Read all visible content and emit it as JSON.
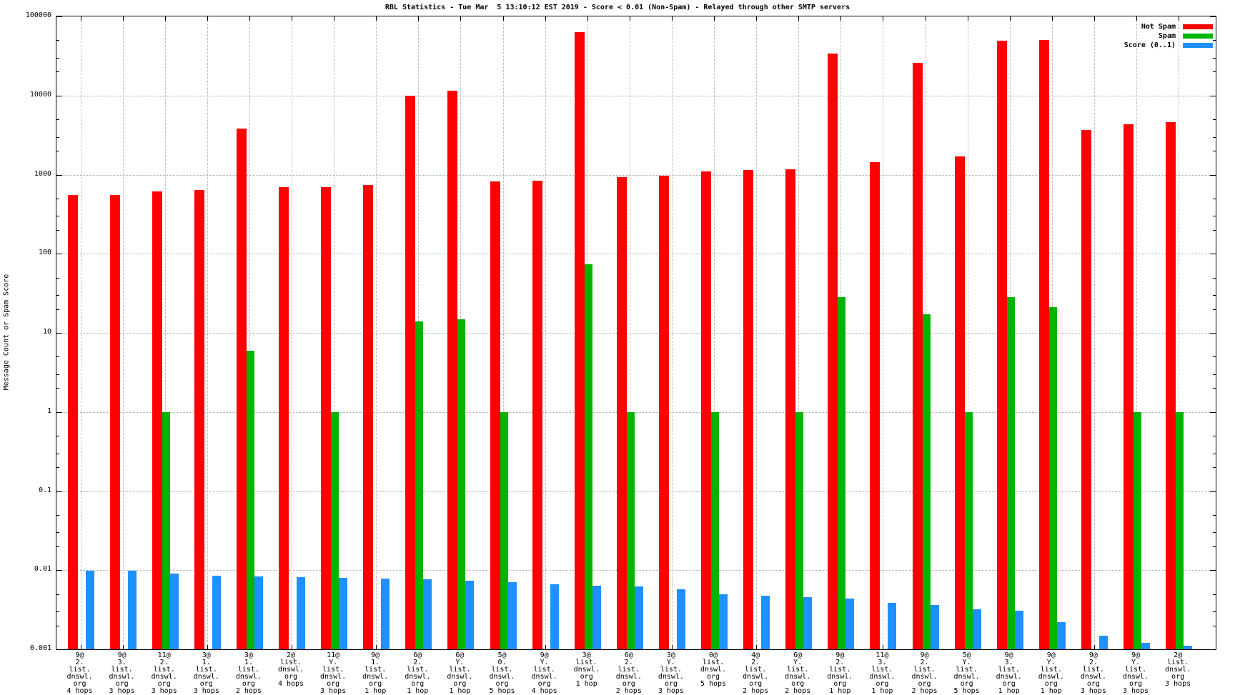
{
  "title": "RBL Statistics - Tue Mar  5 13:10:12 EST 2019 - Score < 0.01 (Non-Spam) - Relayed through other SMTP servers",
  "axes": {
    "ylabel": "Message Count or Spam Score",
    "y_ticks": [
      "100000",
      "10000",
      "1000",
      "100",
      "10",
      "1",
      "0.1",
      "0.01",
      "0.001"
    ],
    "scale": "log"
  },
  "legend": [
    {
      "label": "Not Spam",
      "color": "#ff0000"
    },
    {
      "label": "Spam",
      "color": "#00b400"
    },
    {
      "label": "Score (0..1)",
      "color": "#1e90ff"
    }
  ],
  "chart_data": {
    "type": "bar",
    "scale": "log",
    "title": "RBL Statistics - Tue Mar  5 13:10:12 EST 2019 - Score < 0.01 (Non-Spam) - Relayed through other SMTP servers",
    "xlabel": "",
    "ylabel": "Message Count or Spam Score",
    "ylim": [
      0.001,
      100000
    ],
    "grid": true,
    "legend_position": "top-right",
    "categories": [
      [
        "9@",
        "2.",
        "list.",
        "dnswl.",
        "org",
        "4 hops"
      ],
      [
        "9@",
        "3.",
        "list.",
        "dnswl.",
        "org",
        "3 hops"
      ],
      [
        "11@",
        "2.",
        "list.",
        "dnswl.",
        "org",
        "3 hops"
      ],
      [
        "3@",
        "1.",
        "list.",
        "dnswl.",
        "org",
        "3 hops"
      ],
      [
        "3@",
        "1.",
        "list.",
        "dnswl.",
        "org",
        "2 hops"
      ],
      [
        "2@",
        "list.",
        "dnswl.",
        "org",
        "4 hops"
      ],
      [
        "11@",
        "Y.",
        "list.",
        "dnswl.",
        "org",
        "3 hops"
      ],
      [
        "9@",
        "1.",
        "list.",
        "dnswl.",
        "org",
        "1 hop"
      ],
      [
        "6@",
        "2.",
        "list.",
        "dnswl.",
        "org",
        "1 hop"
      ],
      [
        "6@",
        "Y.",
        "list.",
        "dnswl.",
        "org",
        "1 hop"
      ],
      [
        "5@",
        "0.",
        "list.",
        "dnswl.",
        "org",
        "5 hops"
      ],
      [
        "9@",
        "Y.",
        "list.",
        "dnswl.",
        "org",
        "4 hops"
      ],
      [
        "3@",
        "list.",
        "dnswl.",
        "org",
        "1 hop"
      ],
      [
        "6@",
        "2.",
        "list.",
        "dnswl.",
        "org",
        "2 hops"
      ],
      [
        "3@",
        "Y.",
        "list.",
        "dnswl.",
        "org",
        "3 hops"
      ],
      [
        "0@",
        "list.",
        "dnswl.",
        "org",
        "5 hops"
      ],
      [
        "4@",
        "2.",
        "list.",
        "dnswl.",
        "org",
        "2 hops"
      ],
      [
        "6@",
        "Y.",
        "list.",
        "dnswl.",
        "org",
        "2 hops"
      ],
      [
        "9@",
        "2.",
        "list.",
        "dnswl.",
        "org",
        "1 hop"
      ],
      [
        "11@",
        "3.",
        "list.",
        "dnswl.",
        "org",
        "1 hop"
      ],
      [
        "9@",
        "2.",
        "list.",
        "dnswl.",
        "org",
        "2 hops"
      ],
      [
        "5@",
        "Y.",
        "list.",
        "dnswl.",
        "org",
        "5 hops"
      ],
      [
        "9@",
        "3.",
        "list.",
        "dnswl.",
        "org",
        "1 hop"
      ],
      [
        "9@",
        "Y.",
        "list.",
        "dnswl.",
        "org",
        "1 hop"
      ],
      [
        "9@",
        "2.",
        "list.",
        "dnswl.",
        "org",
        "3 hops"
      ],
      [
        "9@",
        "Y.",
        "list.",
        "dnswl.",
        "org",
        "3 hops"
      ],
      [
        "2@",
        "list.",
        "dnswl.",
        "org",
        "3 hops"
      ]
    ],
    "series": [
      {
        "name": "Not Spam",
        "color": "#ff0000",
        "values": [
          550,
          550,
          620,
          640,
          3800,
          690,
          700,
          740,
          10000,
          11400,
          820,
          845,
          63000,
          930,
          960,
          1100,
          1140,
          1160,
          34000,
          1440,
          26000,
          1700,
          49000,
          50000,
          3700,
          4350,
          4650
        ]
      },
      {
        "name": "Spam",
        "color": "#00b400",
        "values": [
          null,
          null,
          1,
          null,
          6,
          null,
          1,
          null,
          14,
          15,
          1,
          null,
          73,
          1,
          null,
          1,
          null,
          1,
          28,
          null,
          17,
          1,
          28,
          21,
          null,
          1,
          1
        ]
      },
      {
        "name": "Score (0..1)",
        "color": "#1e90ff",
        "values": [
          0.0098,
          0.0098,
          0.009,
          0.0085,
          0.0084,
          0.0082,
          0.008,
          0.0078,
          0.0077,
          0.0074,
          0.0071,
          0.0067,
          0.0064,
          0.0062,
          0.0057,
          0.005,
          0.0048,
          0.0046,
          0.0044,
          0.0039,
          0.0036,
          0.0032,
          0.0031,
          0.0022,
          0.0015,
          0.0012,
          0.0011
        ]
      }
    ]
  }
}
